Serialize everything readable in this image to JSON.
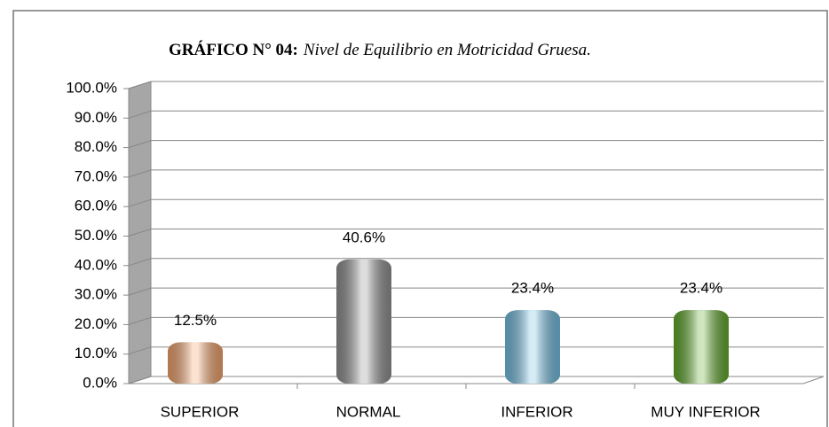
{
  "chart_data": {
    "type": "bar",
    "title": "GRÁFICO N°  04:",
    "subtitle": "Nivel de Equilibrio en Motricidad Gruesa.",
    "categories": [
      "SUPERIOR",
      "NORMAL",
      "INFERIOR",
      "MUY INFERIOR"
    ],
    "values": [
      12.5,
      40.6,
      23.4,
      23.4
    ],
    "value_labels": [
      "12.5%",
      "40.6%",
      "23.4%",
      "23.4%"
    ],
    "colors": [
      "#f0a26a",
      "#8f8f8f",
      "#72bde0",
      "#5fa82a"
    ],
    "ylim": [
      0,
      100
    ],
    "yticks": [
      {
        "value": 0,
        "label": "0.0%"
      },
      {
        "value": 10,
        "label": "10.0%"
      },
      {
        "value": 20,
        "label": "20.0%"
      },
      {
        "value": 30,
        "label": "30.0%"
      },
      {
        "value": 40,
        "label": "40.0%"
      },
      {
        "value": 50,
        "label": "50.0%"
      },
      {
        "value": 60,
        "label": "60.0%"
      },
      {
        "value": 70,
        "label": "70.0%"
      },
      {
        "value": 80,
        "label": "80.0%"
      },
      {
        "value": 90,
        "label": "90.0%"
      },
      {
        "value": 100,
        "label": "100.0%"
      }
    ],
    "grid": true
  }
}
